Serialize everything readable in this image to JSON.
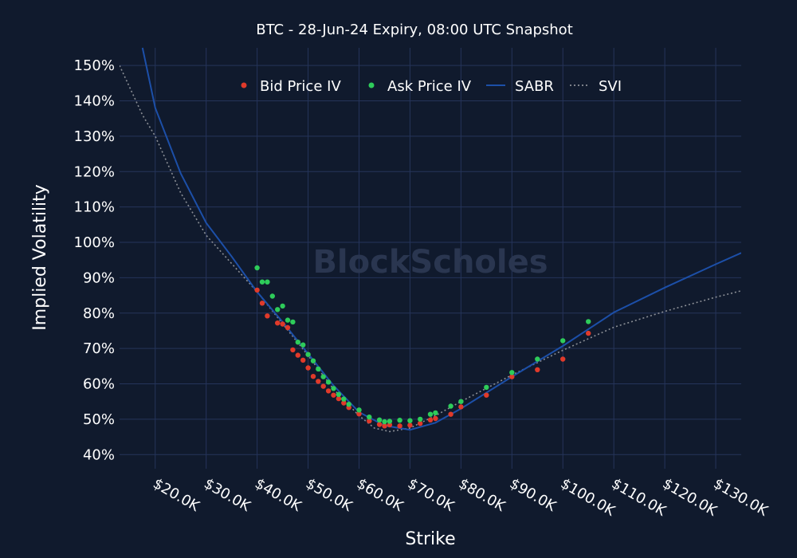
{
  "chart_data": {
    "type": "scatter",
    "title": "BTC - 28-Jun-24 Expiry, 08:00 UTC Snapshot",
    "xlabel": "Strike",
    "ylabel": "Implied Volatility",
    "watermark": "BlockScholes",
    "xlim": [
      13000,
      135000
    ],
    "ylim": [
      36,
      155
    ],
    "x_ticks": [
      20000,
      30000,
      40000,
      50000,
      60000,
      70000,
      80000,
      90000,
      100000,
      110000,
      120000,
      130000
    ],
    "x_tick_labels": [
      "$20.0K",
      "$30.0K",
      "$40.0K",
      "$50.0K",
      "$60.0K",
      "$70.0K",
      "$80.0K",
      "$90.0K",
      "$100.0K",
      "$110.0K",
      "$120.0K",
      "$130.0K"
    ],
    "y_ticks": [
      40,
      50,
      60,
      70,
      80,
      90,
      100,
      110,
      120,
      130,
      140,
      150
    ],
    "y_tick_labels": [
      "40%",
      "50%",
      "60%",
      "70%",
      "80%",
      "90%",
      "100%",
      "110%",
      "120%",
      "130%",
      "140%",
      "150%"
    ],
    "grid": true,
    "legend_placement": "top",
    "colors": {
      "background": "#101a2d",
      "grid": "#25345a",
      "bid": "#e03a2a",
      "ask": "#2ecc5a",
      "sabr": "#1c4fa8",
      "svi": "#8b8f96"
    },
    "series": [
      {
        "name": "Bid Price IV",
        "kind": "markers",
        "points": [
          [
            40000,
            86.5
          ],
          [
            41000,
            82.8
          ],
          [
            42000,
            79.2
          ],
          [
            44000,
            77.2
          ],
          [
            45000,
            76.9
          ],
          [
            46000,
            75.9
          ],
          [
            47000,
            69.6
          ],
          [
            48000,
            68.1
          ],
          [
            49000,
            66.7
          ],
          [
            50000,
            64.5
          ],
          [
            51000,
            62.1
          ],
          [
            52000,
            60.7
          ],
          [
            53000,
            59.3
          ],
          [
            54000,
            58.0
          ],
          [
            55000,
            56.8
          ],
          [
            56000,
            55.8
          ],
          [
            57000,
            54.6
          ],
          [
            58000,
            53.3
          ],
          [
            60000,
            51.5
          ],
          [
            62000,
            49.5
          ],
          [
            64000,
            48.5
          ],
          [
            65000,
            48.1
          ],
          [
            66000,
            48.4
          ],
          [
            68000,
            48.1
          ],
          [
            70000,
            48.3
          ],
          [
            72000,
            48.8
          ],
          [
            74000,
            49.8
          ],
          [
            75000,
            50.2
          ],
          [
            78000,
            51.4
          ],
          [
            80000,
            53.5
          ],
          [
            85000,
            56.8
          ],
          [
            90000,
            62.0
          ],
          [
            95000,
            64.0
          ],
          [
            100000,
            67.0
          ],
          [
            105000,
            74.3
          ]
        ]
      },
      {
        "name": "Ask Price IV",
        "kind": "markers",
        "points": [
          [
            40000,
            92.8
          ],
          [
            41000,
            88.8
          ],
          [
            42000,
            88.8
          ],
          [
            43000,
            84.8
          ],
          [
            44000,
            81.0
          ],
          [
            45000,
            82.0
          ],
          [
            46000,
            78.0
          ],
          [
            47000,
            77.5
          ],
          [
            48000,
            71.8
          ],
          [
            49000,
            71.0
          ],
          [
            50000,
            68.3
          ],
          [
            51000,
            66.5
          ],
          [
            52000,
            64.2
          ],
          [
            53000,
            62.0
          ],
          [
            54000,
            60.5
          ],
          [
            55000,
            58.7
          ],
          [
            56000,
            57.0
          ],
          [
            57000,
            55.7
          ],
          [
            58000,
            54.2
          ],
          [
            60000,
            52.6
          ],
          [
            62000,
            50.6
          ],
          [
            64000,
            49.8
          ],
          [
            65000,
            49.3
          ],
          [
            66000,
            49.4
          ],
          [
            68000,
            49.7
          ],
          [
            70000,
            49.6
          ],
          [
            72000,
            50.0
          ],
          [
            74000,
            51.4
          ],
          [
            75000,
            51.8
          ],
          [
            78000,
            53.7
          ],
          [
            80000,
            55.0
          ],
          [
            85000,
            59.0
          ],
          [
            90000,
            63.2
          ],
          [
            95000,
            67.0
          ],
          [
            100000,
            72.2
          ],
          [
            105000,
            77.6
          ]
        ]
      },
      {
        "name": "SABR",
        "kind": "line",
        "points": [
          [
            17500,
            155
          ],
          [
            20000,
            138
          ],
          [
            25000,
            119.5
          ],
          [
            30000,
            105.5
          ],
          [
            35000,
            96
          ],
          [
            40000,
            86
          ],
          [
            45000,
            77.5
          ],
          [
            50000,
            68.5
          ],
          [
            55000,
            59.5
          ],
          [
            60000,
            52
          ],
          [
            65000,
            48.2
          ],
          [
            70000,
            47
          ],
          [
            75000,
            49
          ],
          [
            80000,
            53
          ],
          [
            90000,
            62
          ],
          [
            100000,
            70.7
          ],
          [
            110000,
            80.2
          ],
          [
            120000,
            87.2
          ],
          [
            130000,
            93.8
          ],
          [
            135000,
            97
          ]
        ]
      },
      {
        "name": "SVI",
        "kind": "dotted-line",
        "points": [
          [
            13000,
            150
          ],
          [
            17500,
            136
          ],
          [
            20000,
            130
          ],
          [
            25000,
            114
          ],
          [
            30000,
            102
          ],
          [
            35000,
            94
          ],
          [
            40000,
            86
          ],
          [
            45000,
            77
          ],
          [
            50000,
            68
          ],
          [
            55000,
            58.5
          ],
          [
            60000,
            51
          ],
          [
            63000,
            47.5
          ],
          [
            66000,
            46.5
          ],
          [
            70000,
            47.5
          ],
          [
            75000,
            51
          ],
          [
            80000,
            55
          ],
          [
            90000,
            62.5
          ],
          [
            100000,
            69.5
          ],
          [
            110000,
            76
          ],
          [
            120000,
            80.5
          ],
          [
            130000,
            84.5
          ],
          [
            135000,
            86.3
          ]
        ]
      }
    ]
  }
}
